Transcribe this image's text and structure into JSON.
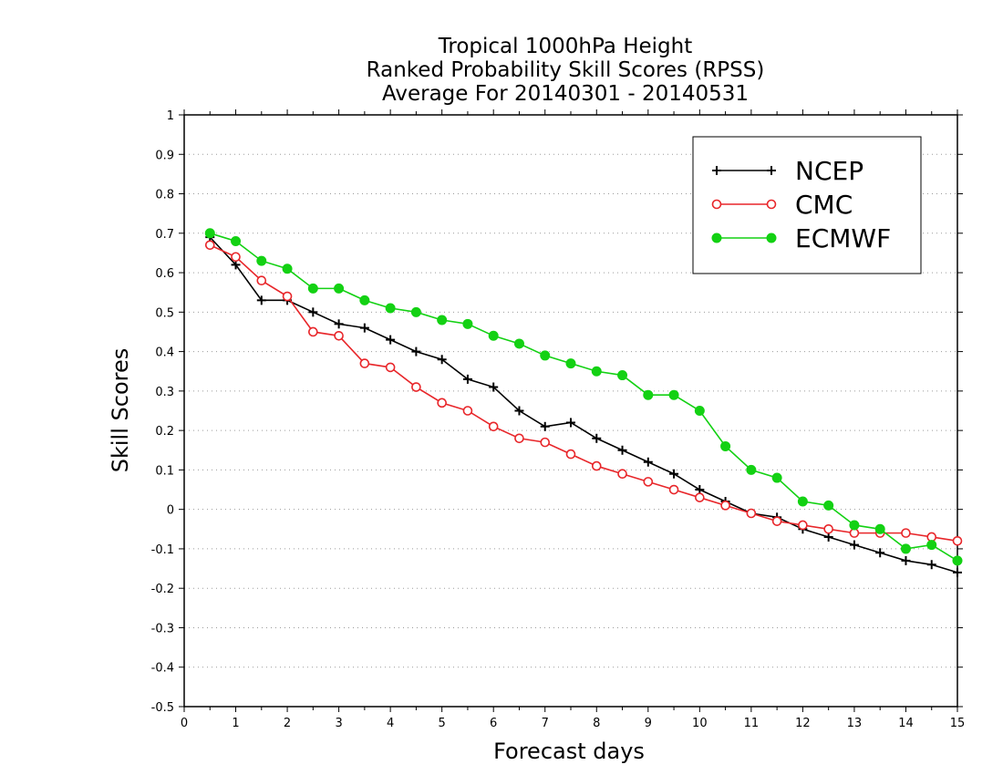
{
  "chart_data": {
    "type": "line",
    "title": [
      "Tropical 1000hPa Height",
      "Ranked Probability Skill Scores (RPSS)",
      "Average For 20140301 - 20140531"
    ],
    "xlabel": "Forecast days",
    "ylabel": "Skill Scores",
    "xlim": [
      0,
      15
    ],
    "ylim": [
      -0.5,
      1
    ],
    "x_ticks": [
      "0",
      "1",
      "2",
      "3",
      "4",
      "5",
      "6",
      "7",
      "8",
      "9",
      "10",
      "11",
      "12",
      "13",
      "14",
      "15"
    ],
    "y_ticks": [
      "-0.5",
      "-0.4",
      "-0.3",
      "-0.2",
      "-0.1",
      "0",
      "0.1",
      "0.2",
      "0.3",
      "0.4",
      "0.5",
      "0.6",
      "0.7",
      "0.8",
      "0.9",
      "1"
    ],
    "grid": "horizontal dotted",
    "legend_position": "top-right",
    "x": [
      0.5,
      1,
      1.5,
      2,
      2.5,
      3,
      3.5,
      4,
      4.5,
      5,
      5.5,
      6,
      6.5,
      7,
      7.5,
      8,
      8.5,
      9,
      9.5,
      10,
      10.5,
      11,
      11.5,
      12,
      12.5,
      13,
      13.5,
      14,
      14.5,
      15
    ],
    "series": [
      {
        "name": "NCEP",
        "color": "#000000",
        "marker": "plus",
        "values": [
          0.69,
          0.62,
          0.53,
          0.53,
          0.5,
          0.47,
          0.46,
          0.43,
          0.4,
          0.38,
          0.33,
          0.31,
          0.25,
          0.21,
          0.22,
          0.18,
          0.15,
          0.12,
          0.09,
          0.05,
          0.02,
          -0.01,
          -0.02,
          -0.05,
          -0.07,
          -0.09,
          -0.11,
          -0.13,
          -0.14,
          -0.16
        ]
      },
      {
        "name": "CMC",
        "color": "#e8262a",
        "marker": "open-circle",
        "values": [
          0.67,
          0.64,
          0.58,
          0.54,
          0.45,
          0.44,
          0.37,
          0.36,
          0.31,
          0.27,
          0.25,
          0.21,
          0.18,
          0.17,
          0.14,
          0.11,
          0.09,
          0.07,
          0.05,
          0.03,
          0.01,
          -0.01,
          -0.03,
          -0.04,
          -0.05,
          -0.06,
          -0.06,
          -0.06,
          -0.07,
          -0.08
        ]
      },
      {
        "name": "ECMWF",
        "color": "#13d113",
        "marker": "filled-circle",
        "values": [
          0.7,
          0.68,
          0.63,
          0.61,
          0.56,
          0.56,
          0.53,
          0.51,
          0.5,
          0.48,
          0.47,
          0.44,
          0.42,
          0.39,
          0.37,
          0.35,
          0.34,
          0.29,
          0.29,
          0.25,
          0.16,
          0.1,
          0.08,
          0.02,
          0.01,
          -0.04,
          -0.05,
          -0.1,
          -0.09,
          -0.13
        ]
      }
    ]
  }
}
